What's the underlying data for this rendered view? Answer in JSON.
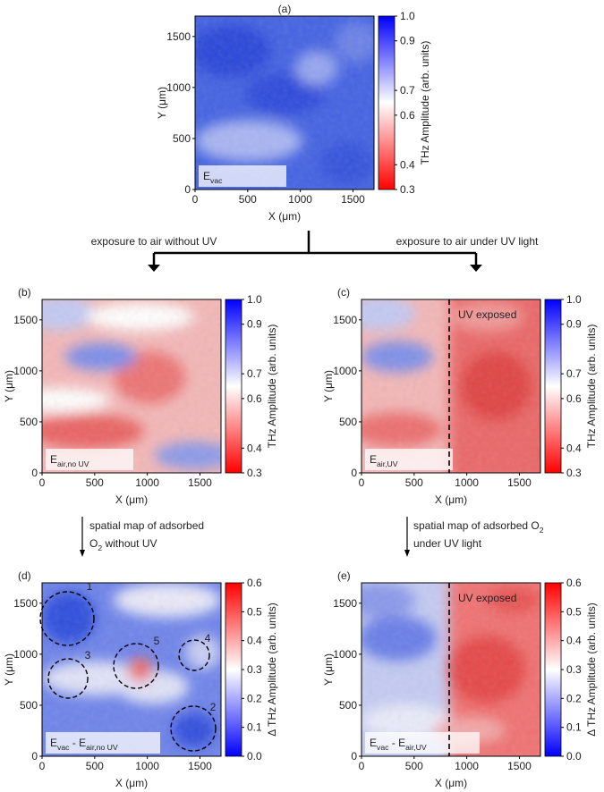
{
  "chart_data": [
    {
      "type": "heatmap",
      "panel_label": "(a)",
      "xlabel": "X (μm)",
      "ylabel": "Y (μm)",
      "xlim": [
        0,
        1700
      ],
      "ylim": [
        0,
        1700
      ],
      "xticks": [
        0,
        500,
        1000,
        1500
      ],
      "yticks": [
        0,
        500,
        1000,
        1500
      ],
      "colorbar": {
        "label": "THz Amplitude (arb. units)",
        "lim": [
          0.3,
          1
        ],
        "colors": [
          "#0000ff",
          "#ffffff",
          "#ff0000"
        ],
        "ticks": [
          {
            "value": 1,
            "label": "1.0"
          },
          0.9,
          0.7,
          0.6,
          0.4,
          0.3
        ]
      },
      "inset_label": [
        "E",
        {
          "sub": "vac"
        }
      ]
    },
    {
      "type": "heatmap",
      "panel_label": "(b)",
      "xlabel": "X (μm)",
      "ylabel": "Y (μm)",
      "xlim": [
        0,
        1700
      ],
      "ylim": [
        0,
        1700
      ],
      "xticks": [
        0,
        500,
        1000,
        1500
      ],
      "yticks": [
        0,
        500,
        1000,
        1500
      ],
      "colorbar": {
        "label": "THz Amplitude (arb. units)",
        "lim": [
          0.3,
          1
        ],
        "colors": [
          "#0000ff",
          "#ffffff",
          "#ff0000"
        ],
        "ticks": [
          {
            "value": 1,
            "label": "1.0"
          },
          0.9,
          0.7,
          0.6,
          0.4,
          0.3
        ]
      },
      "inset_label": [
        "E",
        {
          "sub": "air,no UV"
        }
      ]
    },
    {
      "type": "heatmap",
      "panel_label": "(c)",
      "xlabel": "X (μm)",
      "ylabel": "Y (μm)",
      "xlim": [
        0,
        1700
      ],
      "ylim": [
        0,
        1700
      ],
      "xticks": [
        0,
        500,
        1000,
        1500
      ],
      "yticks": [
        0,
        500,
        1000,
        1500
      ],
      "colorbar": {
        "label": "THz Amplitude (arb. units)",
        "lim": [
          0.3,
          1
        ],
        "colors": [
          "#0000ff",
          "#ffffff",
          "#ff0000"
        ],
        "ticks": [
          {
            "value": 1,
            "label": "1.0"
          },
          0.9,
          0.7,
          0.6,
          0.4,
          0.3
        ]
      },
      "inset_label": [
        "E",
        {
          "sub": "air,UV"
        }
      ],
      "annotation": "UV exposed"
    },
    {
      "type": "heatmap",
      "panel_label": "(d)",
      "xlabel": "X (μm)",
      "ylabel": "Y (μm)",
      "xlim": [
        0,
        1700
      ],
      "ylim": [
        0,
        1700
      ],
      "xticks": [
        0,
        500,
        1000,
        1500
      ],
      "yticks": [
        0,
        500,
        1000,
        1500
      ],
      "colorbar": {
        "label": "Δ THz Amplitude (arb. units)",
        "lim": [
          0,
          0.6
        ],
        "colors": [
          "#ff0000",
          "#ffffff",
          "#0000ff"
        ],
        "ticks": [
          0.6,
          0.5,
          0.4,
          0.3,
          0.2,
          0.1,
          {
            "value": 0,
            "label": "0.0"
          }
        ]
      },
      "inset_label": [
        "E",
        {
          "sub": "vac"
        },
        " - E",
        {
          "sub": "air,no UV"
        }
      ],
      "circles": [
        "1",
        "2",
        "3",
        "4",
        "5"
      ]
    },
    {
      "type": "heatmap",
      "panel_label": "(e)",
      "xlabel": "X (μm)",
      "ylabel": "Y (μm)",
      "xlim": [
        0,
        1700
      ],
      "ylim": [
        0,
        1700
      ],
      "xticks": [
        0,
        500,
        1000,
        1500
      ],
      "yticks": [
        0,
        500,
        1000,
        1500
      ],
      "colorbar": {
        "label": "Δ THz Amplitude (arb. units)",
        "lim": [
          0,
          0.6
        ],
        "colors": [
          "#ff0000",
          "#ffffff",
          "#0000ff"
        ],
        "ticks": [
          0.6,
          0.5,
          0.4,
          0.3,
          0.2,
          0.1,
          {
            "value": 0,
            "label": "0.0"
          }
        ]
      },
      "inset_label": [
        "E",
        {
          "sub": "vac"
        },
        " - E",
        {
          "sub": "air,UV"
        }
      ],
      "annotation": "UV exposed"
    }
  ],
  "transitions": [
    {
      "lines": [
        [
          "exposure to air without UV"
        ]
      ]
    },
    {
      "lines": [
        [
          "exposure to air under UV light"
        ]
      ]
    },
    {
      "lines": [
        [
          "spatial map of adsorbed"
        ],
        [
          "O",
          {
            "sub": "2"
          },
          " without UV"
        ]
      ]
    },
    {
      "lines": [
        [
          "spatial map of adsorbed O",
          {
            "sub": "2"
          }
        ],
        [
          "under UV light"
        ]
      ]
    }
  ]
}
